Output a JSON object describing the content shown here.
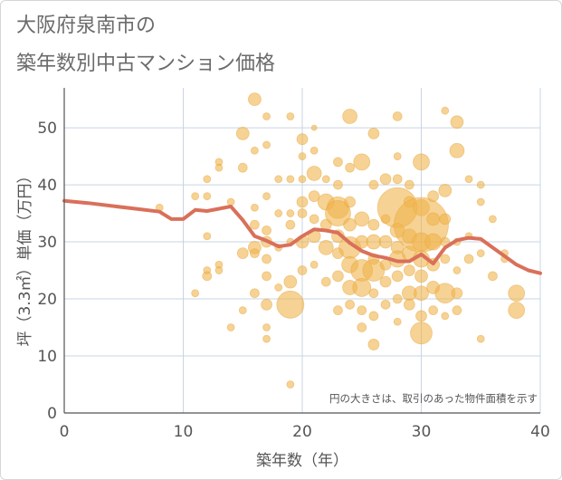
{
  "header": {
    "title_line1": "大阪府泉南市の",
    "title_line2": "築年数別中古マンション価格"
  },
  "chart_data": {
    "type": "scatter",
    "title": "大阪府泉南市の築年数別中古マンション価格",
    "xlabel": "築年数（年）",
    "ylabel": "坪（3.3㎡）単価（万円）",
    "xlim": [
      0,
      40
    ],
    "ylim": [
      0,
      57
    ],
    "x_ticks": [
      0,
      10,
      20,
      30,
      40
    ],
    "y_ticks": [
      0,
      10,
      20,
      30,
      40,
      50
    ],
    "grid": true,
    "annotation": "円の大きさは、取引のあった物件面積を示す",
    "colors": {
      "bubble_fill": "#f0b44d",
      "bubble_stroke": "#e6a53a",
      "line": "#d9705a",
      "grid": "#c9d5e3",
      "axis": "#555555"
    },
    "bubbles": [
      {
        "x": 8,
        "y": 36,
        "s": 4
      },
      {
        "x": 11,
        "y": 38,
        "s": 4
      },
      {
        "x": 11,
        "y": 21,
        "s": 4
      },
      {
        "x": 12,
        "y": 41,
        "s": 4
      },
      {
        "x": 12,
        "y": 38,
        "s": 4
      },
      {
        "x": 12,
        "y": 31,
        "s": 4
      },
      {
        "x": 12,
        "y": 25,
        "s": 4
      },
      {
        "x": 12,
        "y": 24,
        "s": 5
      },
      {
        "x": 13,
        "y": 44,
        "s": 4
      },
      {
        "x": 13,
        "y": 43,
        "s": 4
      },
      {
        "x": 13,
        "y": 26,
        "s": 4
      },
      {
        "x": 13,
        "y": 25,
        "s": 4
      },
      {
        "x": 14,
        "y": 15,
        "s": 4
      },
      {
        "x": 14,
        "y": 37,
        "s": 4
      },
      {
        "x": 15,
        "y": 49,
        "s": 7
      },
      {
        "x": 15,
        "y": 43,
        "s": 5
      },
      {
        "x": 15,
        "y": 28,
        "s": 6
      },
      {
        "x": 15,
        "y": 18,
        "s": 4
      },
      {
        "x": 16,
        "y": 55,
        "s": 7
      },
      {
        "x": 16,
        "y": 46,
        "s": 4
      },
      {
        "x": 16,
        "y": 36,
        "s": 4
      },
      {
        "x": 16,
        "y": 33,
        "s": 5
      },
      {
        "x": 16,
        "y": 29,
        "s": 7
      },
      {
        "x": 16,
        "y": 28,
        "s": 5
      },
      {
        "x": 16,
        "y": 21,
        "s": 5
      },
      {
        "x": 17,
        "y": 52,
        "s": 4
      },
      {
        "x": 17,
        "y": 47,
        "s": 4
      },
      {
        "x": 17,
        "y": 38,
        "s": 4
      },
      {
        "x": 17,
        "y": 32,
        "s": 5
      },
      {
        "x": 17,
        "y": 30,
        "s": 6
      },
      {
        "x": 17,
        "y": 27,
        "s": 5
      },
      {
        "x": 17,
        "y": 24,
        "s": 5
      },
      {
        "x": 17,
        "y": 19,
        "s": 6
      },
      {
        "x": 17,
        "y": 15,
        "s": 4
      },
      {
        "x": 17,
        "y": 13,
        "s": 4
      },
      {
        "x": 18,
        "y": 41,
        "s": 4
      },
      {
        "x": 18,
        "y": 35,
        "s": 4
      },
      {
        "x": 18,
        "y": 29,
        "s": 4
      },
      {
        "x": 18,
        "y": 22,
        "s": 4
      },
      {
        "x": 19,
        "y": 52,
        "s": 4
      },
      {
        "x": 19,
        "y": 41,
        "s": 4
      },
      {
        "x": 19,
        "y": 35,
        "s": 4
      },
      {
        "x": 19,
        "y": 33,
        "s": 5
      },
      {
        "x": 19,
        "y": 30,
        "s": 4
      },
      {
        "x": 19,
        "y": 23,
        "s": 7
      },
      {
        "x": 19,
        "y": 19,
        "s": 15
      },
      {
        "x": 19,
        "y": 5,
        "s": 4
      },
      {
        "x": 20,
        "y": 48,
        "s": 6
      },
      {
        "x": 20,
        "y": 45,
        "s": 4
      },
      {
        "x": 20,
        "y": 41,
        "s": 4
      },
      {
        "x": 20,
        "y": 37,
        "s": 6
      },
      {
        "x": 20,
        "y": 35,
        "s": 5
      },
      {
        "x": 20,
        "y": 30,
        "s": 7
      },
      {
        "x": 20,
        "y": 25,
        "s": 5
      },
      {
        "x": 21,
        "y": 50,
        "s": 3
      },
      {
        "x": 21,
        "y": 46,
        "s": 4
      },
      {
        "x": 21,
        "y": 42,
        "s": 8
      },
      {
        "x": 21,
        "y": 38,
        "s": 6
      },
      {
        "x": 21,
        "y": 34,
        "s": 5
      },
      {
        "x": 21,
        "y": 31,
        "s": 7
      },
      {
        "x": 21,
        "y": 26,
        "s": 4
      },
      {
        "x": 22,
        "y": 41,
        "s": 4
      },
      {
        "x": 22,
        "y": 37,
        "s": 9
      },
      {
        "x": 22,
        "y": 33,
        "s": 6
      },
      {
        "x": 22,
        "y": 29,
        "s": 8
      },
      {
        "x": 22,
        "y": 23,
        "s": 5
      },
      {
        "x": 23,
        "y": 44,
        "s": 5
      },
      {
        "x": 23,
        "y": 40,
        "s": 5
      },
      {
        "x": 23,
        "y": 36,
        "s": 12
      },
      {
        "x": 23,
        "y": 35,
        "s": 14
      },
      {
        "x": 23,
        "y": 31,
        "s": 7
      },
      {
        "x": 23,
        "y": 28,
        "s": 6
      },
      {
        "x": 23,
        "y": 24,
        "s": 6
      },
      {
        "x": 23,
        "y": 18,
        "s": 5
      },
      {
        "x": 24,
        "y": 52,
        "s": 8
      },
      {
        "x": 24,
        "y": 43,
        "s": 5
      },
      {
        "x": 24,
        "y": 37,
        "s": 6
      },
      {
        "x": 24,
        "y": 33,
        "s": 7
      },
      {
        "x": 24,
        "y": 29,
        "s": 12
      },
      {
        "x": 24,
        "y": 26,
        "s": 9
      },
      {
        "x": 24,
        "y": 22,
        "s": 8
      },
      {
        "x": 24,
        "y": 19,
        "s": 5
      },
      {
        "x": 25,
        "y": 44,
        "s": 9
      },
      {
        "x": 25,
        "y": 34,
        "s": 8
      },
      {
        "x": 25,
        "y": 30,
        "s": 7
      },
      {
        "x": 25,
        "y": 25,
        "s": 12
      },
      {
        "x": 25,
        "y": 22,
        "s": 10
      },
      {
        "x": 25,
        "y": 18,
        "s": 5
      },
      {
        "x": 25,
        "y": 15,
        "s": 5
      },
      {
        "x": 26,
        "y": 49,
        "s": 6
      },
      {
        "x": 26,
        "y": 40,
        "s": 5
      },
      {
        "x": 26,
        "y": 33,
        "s": 6
      },
      {
        "x": 26,
        "y": 30,
        "s": 8
      },
      {
        "x": 26,
        "y": 27,
        "s": 6
      },
      {
        "x": 26,
        "y": 25,
        "s": 12
      },
      {
        "x": 26,
        "y": 21,
        "s": 5
      },
      {
        "x": 26,
        "y": 17,
        "s": 5
      },
      {
        "x": 26,
        "y": 12,
        "s": 6
      },
      {
        "x": 27,
        "y": 41,
        "s": 6
      },
      {
        "x": 27,
        "y": 34,
        "s": 5
      },
      {
        "x": 27,
        "y": 30,
        "s": 7
      },
      {
        "x": 27,
        "y": 26,
        "s": 6
      },
      {
        "x": 27,
        "y": 23,
        "s": 6
      },
      {
        "x": 27,
        "y": 19,
        "s": 5
      },
      {
        "x": 28,
        "y": 52,
        "s": 5
      },
      {
        "x": 28,
        "y": 45,
        "s": 4
      },
      {
        "x": 28,
        "y": 41,
        "s": 5
      },
      {
        "x": 28,
        "y": 36,
        "s": 22
      },
      {
        "x": 28,
        "y": 32,
        "s": 8
      },
      {
        "x": 28,
        "y": 29,
        "s": 7
      },
      {
        "x": 28,
        "y": 27,
        "s": 9
      },
      {
        "x": 28,
        "y": 24,
        "s": 6
      },
      {
        "x": 28,
        "y": 20,
        "s": 5
      },
      {
        "x": 28,
        "y": 16,
        "s": 4
      },
      {
        "x": 29,
        "y": 40,
        "s": 5
      },
      {
        "x": 29,
        "y": 37,
        "s": 6
      },
      {
        "x": 29,
        "y": 31,
        "s": 8
      },
      {
        "x": 29,
        "y": 28,
        "s": 8
      },
      {
        "x": 29,
        "y": 25,
        "s": 6
      },
      {
        "x": 29,
        "y": 21,
        "s": 8
      },
      {
        "x": 29,
        "y": 19,
        "s": 6
      },
      {
        "x": 30,
        "y": 44,
        "s": 9
      },
      {
        "x": 30,
        "y": 36,
        "s": 9
      },
      {
        "x": 30,
        "y": 33,
        "s": 30
      },
      {
        "x": 30,
        "y": 30,
        "s": 10
      },
      {
        "x": 30,
        "y": 27,
        "s": 9
      },
      {
        "x": 30,
        "y": 24,
        "s": 7
      },
      {
        "x": 30,
        "y": 21,
        "s": 8
      },
      {
        "x": 30,
        "y": 17,
        "s": 6
      },
      {
        "x": 30,
        "y": 14,
        "s": 12
      },
      {
        "x": 31,
        "y": 38,
        "s": 6
      },
      {
        "x": 31,
        "y": 34,
        "s": 7
      },
      {
        "x": 31,
        "y": 30,
        "s": 9
      },
      {
        "x": 31,
        "y": 26,
        "s": 7
      },
      {
        "x": 31,
        "y": 22,
        "s": 7
      },
      {
        "x": 31,
        "y": 18,
        "s": 5
      },
      {
        "x": 32,
        "y": 53,
        "s": 4
      },
      {
        "x": 32,
        "y": 39,
        "s": 7
      },
      {
        "x": 32,
        "y": 34,
        "s": 6
      },
      {
        "x": 32,
        "y": 30,
        "s": 5
      },
      {
        "x": 32,
        "y": 27,
        "s": 5
      },
      {
        "x": 32,
        "y": 21,
        "s": 11
      },
      {
        "x": 32,
        "y": 17,
        "s": 4
      },
      {
        "x": 33,
        "y": 51,
        "s": 7
      },
      {
        "x": 33,
        "y": 46,
        "s": 8
      },
      {
        "x": 33,
        "y": 30,
        "s": 4
      },
      {
        "x": 33,
        "y": 25,
        "s": 4
      },
      {
        "x": 33,
        "y": 21,
        "s": 6
      },
      {
        "x": 33,
        "y": 18,
        "s": 5
      },
      {
        "x": 34,
        "y": 41,
        "s": 4
      },
      {
        "x": 34,
        "y": 31,
        "s": 4
      },
      {
        "x": 34,
        "y": 27,
        "s": 5
      },
      {
        "x": 35,
        "y": 40,
        "s": 4
      },
      {
        "x": 35,
        "y": 37,
        "s": 4
      },
      {
        "x": 35,
        "y": 28,
        "s": 4
      },
      {
        "x": 35,
        "y": 13,
        "s": 4
      },
      {
        "x": 36,
        "y": 34,
        "s": 4
      },
      {
        "x": 36,
        "y": 24,
        "s": 5
      },
      {
        "x": 37,
        "y": 28,
        "s": 4
      },
      {
        "x": 37,
        "y": 27,
        "s": 4
      },
      {
        "x": 38,
        "y": 21,
        "s": 9
      },
      {
        "x": 38,
        "y": 18,
        "s": 9
      }
    ],
    "line": {
      "x": [
        0,
        2,
        4,
        6,
        8,
        9,
        10,
        11,
        12,
        13,
        14,
        15,
        16,
        17,
        18,
        19,
        20,
        21,
        22,
        23,
        24,
        25,
        26,
        27,
        28,
        29,
        30,
        31,
        32,
        33,
        34,
        35,
        36,
        37,
        38,
        39,
        40
      ],
      "y": [
        37.2,
        36.8,
        36.3,
        35.8,
        35.3,
        34.0,
        34.0,
        35.6,
        35.4,
        35.8,
        36.2,
        33.8,
        31.0,
        30.2,
        29.2,
        29.5,
        31.0,
        32.2,
        32.0,
        31.6,
        29.8,
        28.4,
        27.6,
        27.2,
        26.6,
        26.6,
        27.8,
        26.2,
        29.0,
        30.3,
        30.7,
        30.5,
        29.0,
        27.5,
        26.0,
        25.0,
        24.5
      ]
    }
  }
}
